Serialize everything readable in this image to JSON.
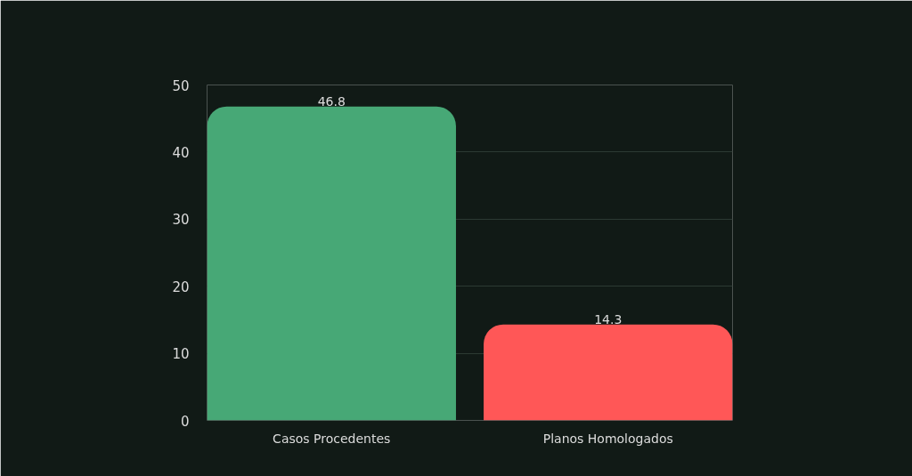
{
  "chart_data": {
    "type": "bar",
    "categories": [
      "Casos Procedentes",
      "Planos Homologados"
    ],
    "values": [
      46.8,
      14.3
    ],
    "colors": [
      "#47a876",
      "#ff5757"
    ],
    "ylim": [
      0,
      50
    ],
    "yticks": [
      0,
      10,
      20,
      30,
      40,
      50
    ],
    "grid": "y",
    "data_labels": true
  }
}
